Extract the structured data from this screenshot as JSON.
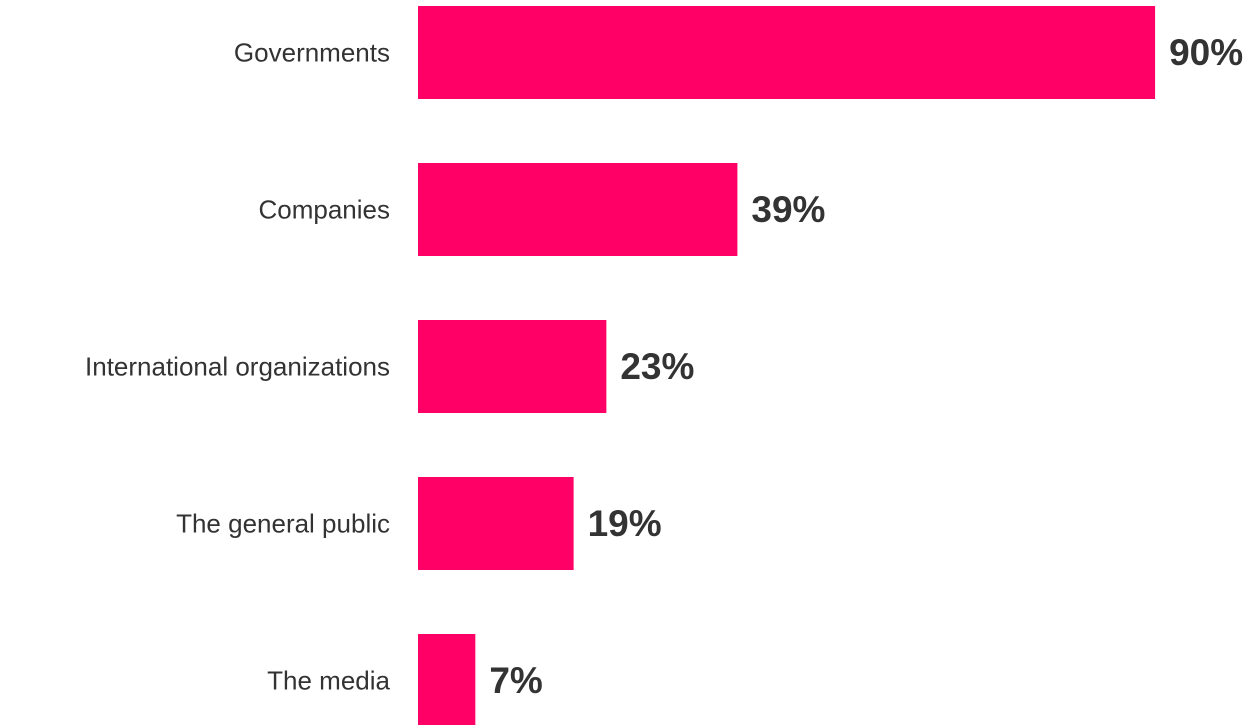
{
  "chart_data": {
    "type": "bar",
    "orientation": "horizontal",
    "categories": [
      "Governments",
      "Companies",
      "International organizations",
      "The general public",
      "The media"
    ],
    "values": [
      90,
      39,
      23,
      19,
      7
    ],
    "value_labels": [
      "90%",
      "39%",
      "23%",
      "19%",
      "7%"
    ],
    "unit": "%",
    "xlim": [
      0,
      100
    ],
    "grid": false,
    "legend": "none",
    "colors": {
      "bar": "#FF0066",
      "text": "#333333"
    }
  }
}
